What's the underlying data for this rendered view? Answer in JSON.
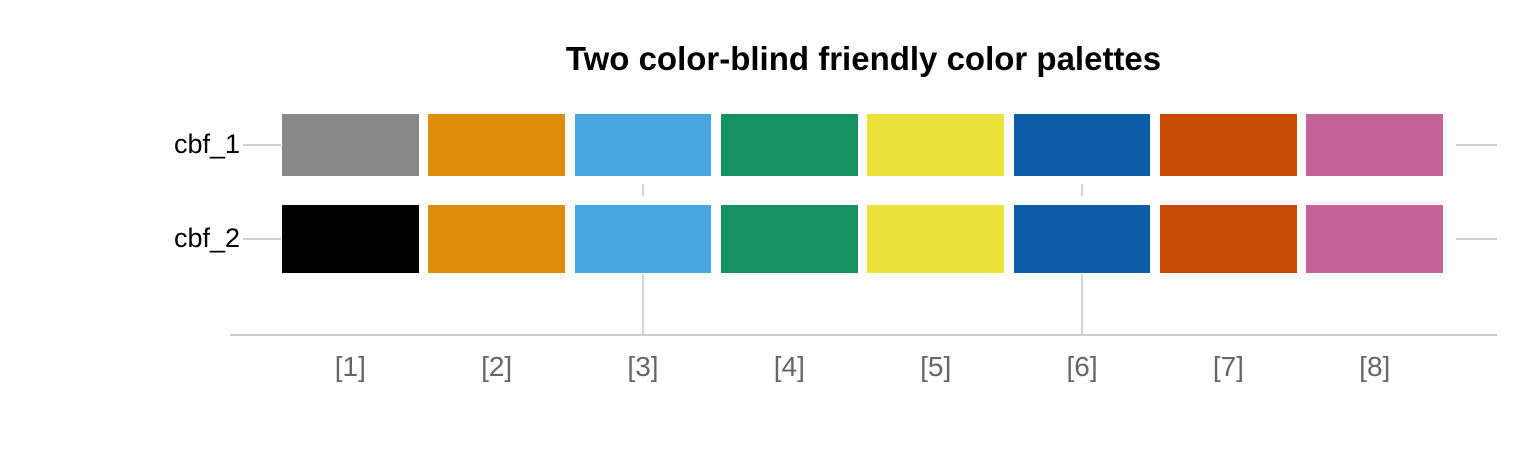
{
  "chart_data": {
    "type": "heatmap",
    "title": "Two color-blind friendly color palettes",
    "x_categories": [
      "[1]",
      "[2]",
      "[3]",
      "[4]",
      "[5]",
      "[6]",
      "[7]",
      "[8]"
    ],
    "y_categories": [
      "cbf_1",
      "cbf_2"
    ],
    "series": [
      {
        "name": "cbf_1",
        "colors": [
          "#888888",
          "#DC8D0B",
          "#4AA4E0",
          "#169160",
          "#EDE23B",
          "#0D5EA6",
          "#C74B05",
          "#C3649B"
        ]
      },
      {
        "name": "cbf_2",
        "colors": [
          "#000000",
          "#DC8D0B",
          "#4AA4E0",
          "#169160",
          "#EDE23B",
          "#0D5EA6",
          "#C74B05",
          "#C3649B"
        ]
      }
    ],
    "layout": {
      "background_color": "#FFFFFF",
      "title_color": "#000000",
      "x_label_color": "#666666",
      "y_label_color": "#000000",
      "axis_line_color": "#CCCCCC",
      "gridline_color": "#D4D4D4",
      "vertical_gridlines_at": [
        "[3]",
        "[6]"
      ],
      "legend": "none",
      "x_axis_side": "bottom",
      "y_axis_side": "left"
    }
  }
}
